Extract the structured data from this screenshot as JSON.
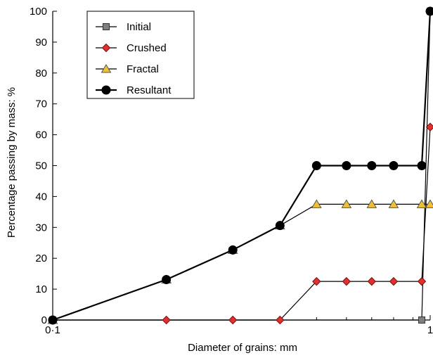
{
  "chart_data": {
    "type": "line",
    "xlabel": "Diameter of grains: mm",
    "ylabel": "Percentage passing by mass: %",
    "x_scale": "log",
    "xlim": [
      0.1,
      1
    ],
    "ylim": [
      0,
      100
    ],
    "x_ticks": [
      {
        "value": 0.1,
        "label": "0·1"
      },
      {
        "value": 1,
        "label": "1"
      }
    ],
    "y_ticks": [
      0,
      10,
      20,
      30,
      40,
      50,
      60,
      70,
      80,
      90,
      100
    ],
    "grid": false,
    "legend": {
      "placement": "top-left"
    },
    "series": [
      {
        "name": "Initial",
        "marker": "square",
        "color": "#808080",
        "x": [
          0.1,
          0.95,
          1.0
        ],
        "y": [
          0,
          0,
          100
        ]
      },
      {
        "name": "Crushed",
        "marker": "diamond",
        "color": "#e03030",
        "x": [
          0.1,
          0.2,
          0.3,
          0.4,
          0.5,
          0.6,
          0.7,
          0.8,
          0.95,
          1.0
        ],
        "y": [
          0,
          0,
          0,
          0,
          12.5,
          12.5,
          12.5,
          12.5,
          12.5,
          62.5
        ]
      },
      {
        "name": "Fractal",
        "marker": "triangle",
        "color": "#f0c030",
        "x": [
          0.1,
          0.2,
          0.3,
          0.4,
          0.5,
          0.6,
          0.7,
          0.8,
          0.95,
          1.0
        ],
        "y": [
          0,
          13.1,
          22.7,
          30.6,
          37.5,
          37.5,
          37.5,
          37.5,
          37.5,
          37.5
        ]
      },
      {
        "name": "Resultant",
        "marker": "circle",
        "color": "#000000",
        "x": [
          0.1,
          0.2,
          0.3,
          0.4,
          0.5,
          0.6,
          0.7,
          0.8,
          0.95,
          1.0
        ],
        "y": [
          0,
          13.1,
          22.7,
          30.6,
          50,
          50,
          50,
          50,
          50,
          100
        ]
      }
    ]
  }
}
